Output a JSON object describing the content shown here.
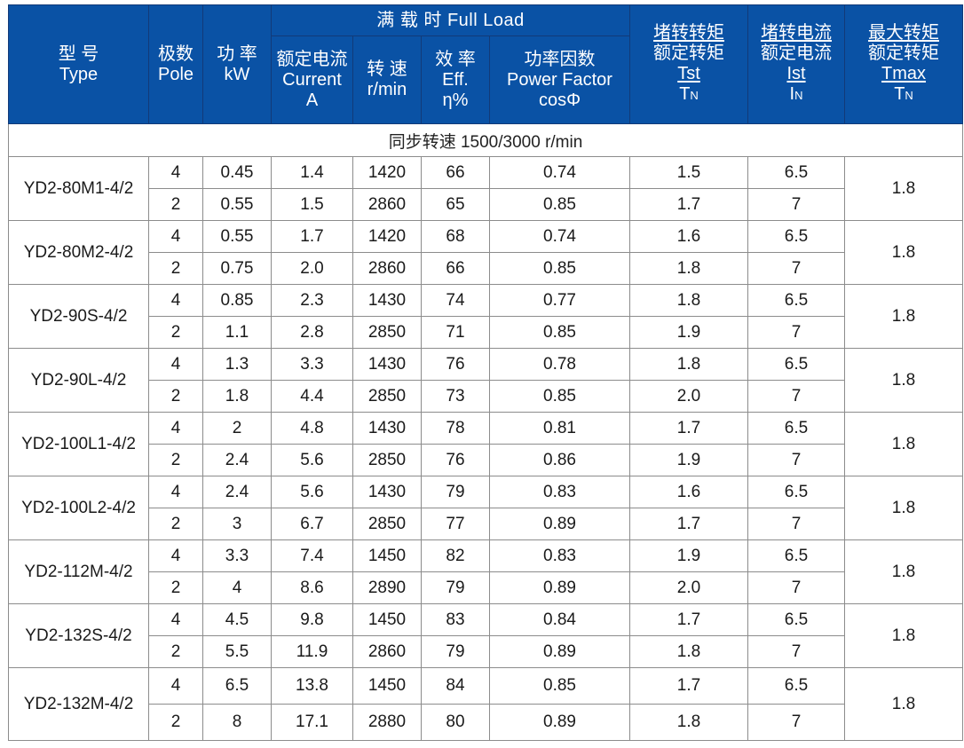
{
  "header": {
    "type": {
      "zh": "型 号",
      "en": "Type"
    },
    "pole": {
      "zh": "极数",
      "en": "Pole"
    },
    "power": {
      "zh": "功 率",
      "en": "kW"
    },
    "full_load": "满  载  时 Full Load",
    "current": {
      "zh": "额定电流",
      "en": "Current",
      "unit": "A"
    },
    "speed": {
      "zh": "转 速",
      "en": "r/min"
    },
    "efficiency": {
      "zh": "效 率",
      "en": "Eff.",
      "unit": "η%"
    },
    "power_factor": {
      "zh": "功率因数",
      "en": "Power Factor",
      "unit": "cosΦ"
    },
    "tst_ratio": {
      "zh_num": "堵转转矩",
      "zh_den": "额定转矩",
      "num": "Tst",
      "den": "T",
      "den_sub": "N"
    },
    "ist_ratio": {
      "zh_num": "堵转电流",
      "zh_den": "额定电流",
      "num": "Ist",
      "den": "I",
      "den_sub": "N"
    },
    "tmax_ratio": {
      "zh_num": "最大转矩",
      "zh_den": "额定转矩",
      "num": "Tmax",
      "den": "T",
      "den_sub": "N"
    }
  },
  "sync_speed": "同步转速  1500/3000 r/min",
  "models": [
    {
      "type": "YD2-80M1-4/2",
      "tmax": "1.8",
      "rows": [
        {
          "pole": "4",
          "kw": "0.45",
          "current": "1.4",
          "speed": "1420",
          "eff": "66",
          "pf": "0.74",
          "tst": "1.5",
          "ist": "6.5"
        },
        {
          "pole": "2",
          "kw": "0.55",
          "current": "1.5",
          "speed": "2860",
          "eff": "65",
          "pf": "0.85",
          "tst": "1.7",
          "ist": "7"
        }
      ]
    },
    {
      "type": "YD2-80M2-4/2",
      "tmax": "1.8",
      "rows": [
        {
          "pole": "4",
          "kw": "0.55",
          "current": "1.7",
          "speed": "1420",
          "eff": "68",
          "pf": "0.74",
          "tst": "1.6",
          "ist": "6.5"
        },
        {
          "pole": "2",
          "kw": "0.75",
          "current": "2.0",
          "speed": "2860",
          "eff": "66",
          "pf": "0.85",
          "tst": "1.8",
          "ist": "7"
        }
      ]
    },
    {
      "type": "YD2-90S-4/2",
      "tmax": "1.8",
      "rows": [
        {
          "pole": "4",
          "kw": "0.85",
          "current": "2.3",
          "speed": "1430",
          "eff": "74",
          "pf": "0.77",
          "tst": "1.8",
          "ist": "6.5"
        },
        {
          "pole": "2",
          "kw": "1.1",
          "current": "2.8",
          "speed": "2850",
          "eff": "71",
          "pf": "0.85",
          "tst": "1.9",
          "ist": "7"
        }
      ]
    },
    {
      "type": "YD2-90L-4/2",
      "tmax": "1.8",
      "rows": [
        {
          "pole": "4",
          "kw": "1.3",
          "current": "3.3",
          "speed": "1430",
          "eff": "76",
          "pf": "0.78",
          "tst": "1.8",
          "ist": "6.5"
        },
        {
          "pole": "2",
          "kw": "1.8",
          "current": "4.4",
          "speed": "2850",
          "eff": "73",
          "pf": "0.85",
          "tst": "2.0",
          "ist": "7"
        }
      ]
    },
    {
      "type": "YD2-100L1-4/2",
      "tmax": "1.8",
      "rows": [
        {
          "pole": "4",
          "kw": "2",
          "current": "4.8",
          "speed": "1430",
          "eff": "78",
          "pf": "0.81",
          "tst": "1.7",
          "ist": "6.5"
        },
        {
          "pole": "2",
          "kw": "2.4",
          "current": "5.6",
          "speed": "2850",
          "eff": "76",
          "pf": "0.86",
          "tst": "1.9",
          "ist": "7"
        }
      ]
    },
    {
      "type": "YD2-100L2-4/2",
      "tmax": "1.8",
      "rows": [
        {
          "pole": "4",
          "kw": "2.4",
          "current": "5.6",
          "speed": "1430",
          "eff": "79",
          "pf": "0.83",
          "tst": "1.6",
          "ist": "6.5"
        },
        {
          "pole": "2",
          "kw": "3",
          "current": "6.7",
          "speed": "2850",
          "eff": "77",
          "pf": "0.89",
          "tst": "1.7",
          "ist": "7"
        }
      ]
    },
    {
      "type": "YD2-112M-4/2",
      "tmax": "1.8",
      "rows": [
        {
          "pole": "4",
          "kw": "3.3",
          "current": "7.4",
          "speed": "1450",
          "eff": "82",
          "pf": "0.83",
          "tst": "1.9",
          "ist": "6.5"
        },
        {
          "pole": "2",
          "kw": "4",
          "current": "8.6",
          "speed": "2890",
          "eff": "79",
          "pf": "0.89",
          "tst": "2.0",
          "ist": "7"
        }
      ]
    },
    {
      "type": "YD2-132S-4/2",
      "tmax": "1.8",
      "rows": [
        {
          "pole": "4",
          "kw": "4.5",
          "current": "9.8",
          "speed": "1450",
          "eff": "83",
          "pf": "0.84",
          "tst": "1.7",
          "ist": "6.5"
        },
        {
          "pole": "2",
          "kw": "5.5",
          "current": "11.9",
          "speed": "2860",
          "eff": "79",
          "pf": "0.89",
          "tst": "1.8",
          "ist": "7"
        }
      ]
    },
    {
      "type": "YD2-132M-4/2",
      "tmax": "1.8",
      "rows": [
        {
          "pole": "4",
          "kw": "6.5",
          "current": "13.8",
          "speed": "1450",
          "eff": "84",
          "pf": "0.85",
          "tst": "1.7",
          "ist": "6.5"
        },
        {
          "pole": "2",
          "kw": "8",
          "current": "17.1",
          "speed": "2880",
          "eff": "80",
          "pf": "0.89",
          "tst": "1.8",
          "ist": "7"
        }
      ]
    }
  ]
}
